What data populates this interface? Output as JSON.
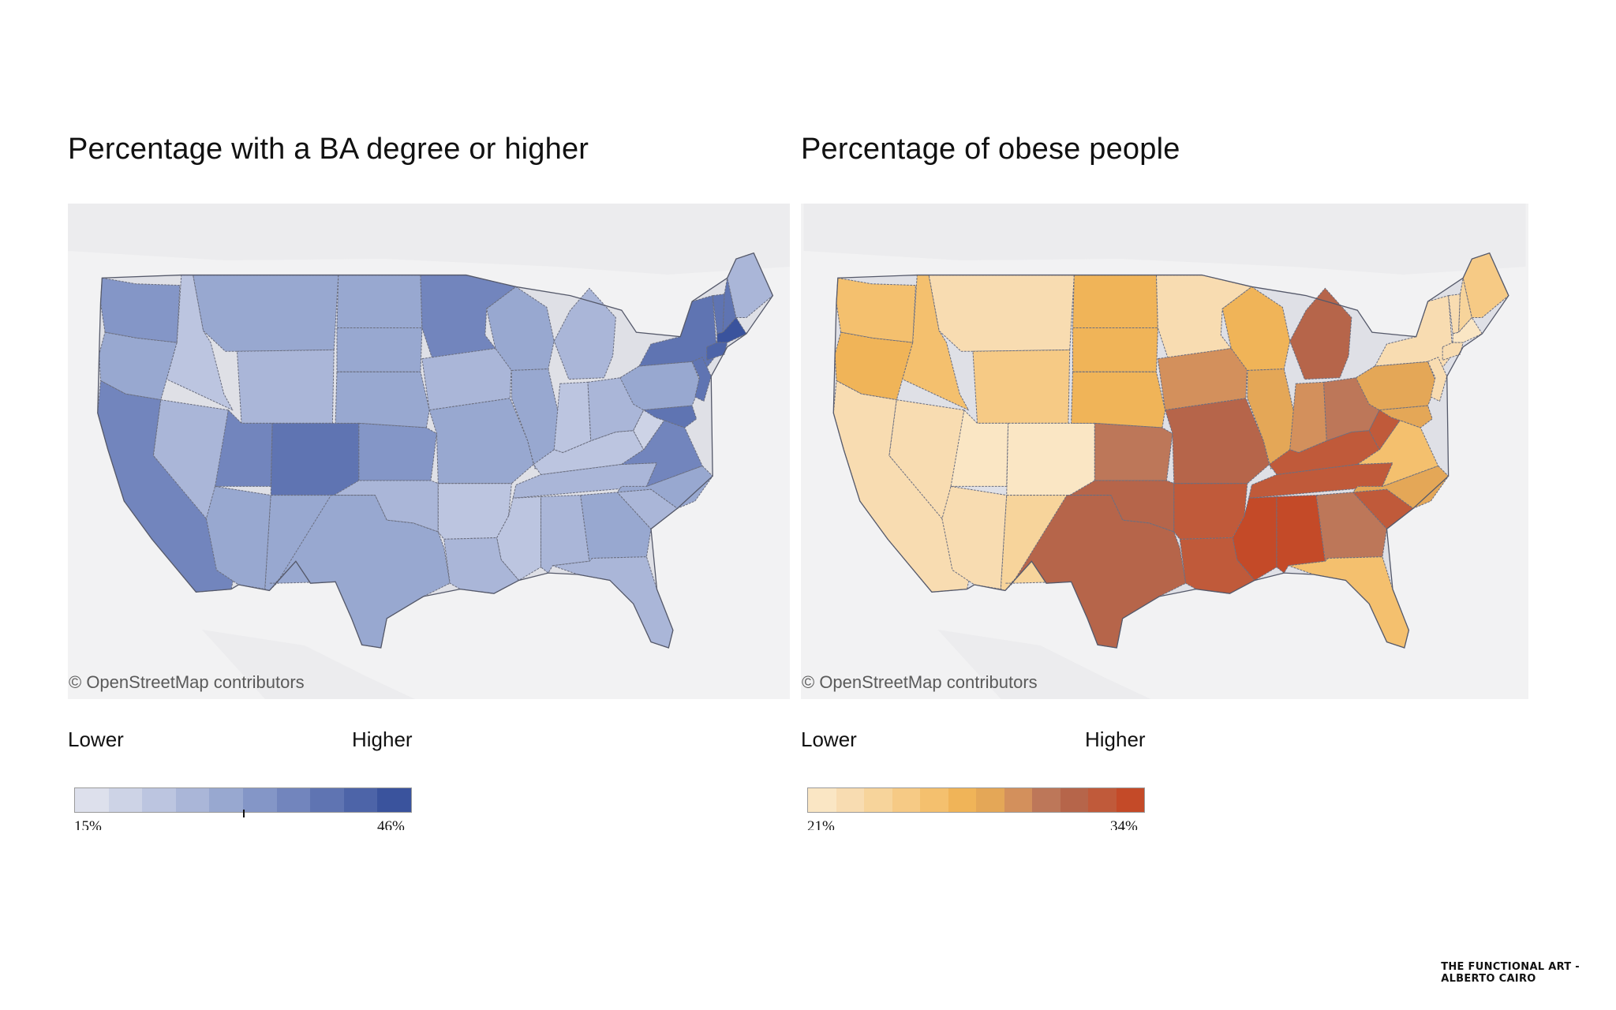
{
  "maps": [
    {
      "title": "Percentage with a BA degree or higher",
      "attribution": "© OpenStreetMap contributors",
      "legend": {
        "lower_label": "Lower",
        "higher_label": "Higher",
        "min_label": "15%",
        "max_label": "46%",
        "marker_fraction": 0.5,
        "colors": [
          "#dde0ec",
          "#cdd3e6",
          "#bcc5e0",
          "#aab6d8",
          "#98a8d0",
          "#8496c7",
          "#7285bd",
          "#5f74b2",
          "#4d64a8",
          "#3a539d"
        ]
      },
      "regions": {
        "WA": 5,
        "OR": 4,
        "CA": 6,
        "ID": 2,
        "NV": 3,
        "MT": 4,
        "WY": 3,
        "UT": 6,
        "CO": 7,
        "AZ": 4,
        "NM": 4,
        "ND": 4,
        "SD": 4,
        "NE": 4,
        "KS": 5,
        "OK": 3,
        "TX": 4,
        "MN": 6,
        "IA": 3,
        "MO": 4,
        "AR": 2,
        "LA": 3,
        "WI": 4,
        "IL": 4,
        "MI": 3,
        "IN": 2,
        "OH": 3,
        "KY": 2,
        "TN": 3,
        "MS": 2,
        "AL": 3,
        "GA": 4,
        "FL": 3,
        "SC": 3,
        "NC": 4,
        "VA": 6,
        "WV": 1,
        "PA": 4,
        "NY": 7,
        "VT": 7,
        "NH": 7,
        "ME": 3,
        "MA": 9,
        "CT": 8,
        "NJ": 7,
        "MD": 7
      }
    },
    {
      "title": "Percentage of obese people",
      "attribution": "© OpenStreetMap contributors",
      "legend": {
        "lower_label": "Lower",
        "higher_label": "Higher",
        "min_label": "21%",
        "max_label": "34%",
        "marker_fraction": null,
        "colors": [
          "#fae6c4",
          "#f8dcb1",
          "#f7d49b",
          "#f6ca85",
          "#f4c06e",
          "#f0b458",
          "#e4a757",
          "#d3905c",
          "#bd7759",
          "#b6654a",
          "#c05a3a",
          "#c44a28"
        ]
      },
      "regions": {
        "WA": 4,
        "OR": 5,
        "CA": 1,
        "ID": 4,
        "NV": 1,
        "MT": 1,
        "WY": 3,
        "UT": 0,
        "CO": 0,
        "AZ": 1,
        "NM": 2,
        "ND": 5,
        "SD": 5,
        "NE": 5,
        "KS": 8,
        "OK": 9,
        "TX": 9,
        "MN": 1,
        "IA": 7,
        "MO": 9,
        "AR": 10,
        "LA": 10,
        "WI": 5,
        "IL": 6,
        "MI": 9,
        "IN": 7,
        "OH": 8,
        "KY": 10,
        "TN": 10,
        "MS": 11,
        "AL": 11,
        "GA": 8,
        "FL": 4,
        "SC": 10,
        "NC": 6,
        "VA": 4,
        "WV": 10,
        "PA": 6,
        "NY": 1,
        "VT": 1,
        "NH": 2,
        "ME": 3,
        "MA": 0,
        "CT": 1,
        "NJ": 1,
        "MD": 6
      }
    }
  ],
  "footer": {
    "line1": "THE FUNCTIONAL ART -",
    "line2": "ALBERTO CAIRO"
  }
}
